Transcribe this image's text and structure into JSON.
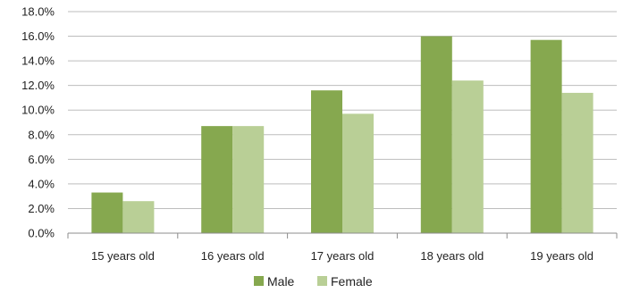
{
  "chart_data": {
    "type": "bar",
    "title": "",
    "xlabel": "",
    "ylabel": "",
    "categories": [
      "15 years old",
      "16 years old",
      "17 years old",
      "18 years old",
      "19 years old"
    ],
    "series": [
      {
        "name": "Male",
        "color": "#86a84f",
        "values": [
          3.3,
          8.7,
          11.6,
          16.0,
          15.7
        ]
      },
      {
        "name": "Female",
        "color": "#b9cf96",
        "values": [
          2.6,
          8.7,
          9.7,
          12.4,
          11.4
        ]
      }
    ],
    "ylim": [
      0,
      18
    ],
    "yticks": [
      "0.0%",
      "2.0%",
      "4.0%",
      "6.0%",
      "8.0%",
      "10.0%",
      "12.0%",
      "14.0%",
      "16.0%",
      "18.0%"
    ],
    "grid": true,
    "legend": "bottom"
  }
}
